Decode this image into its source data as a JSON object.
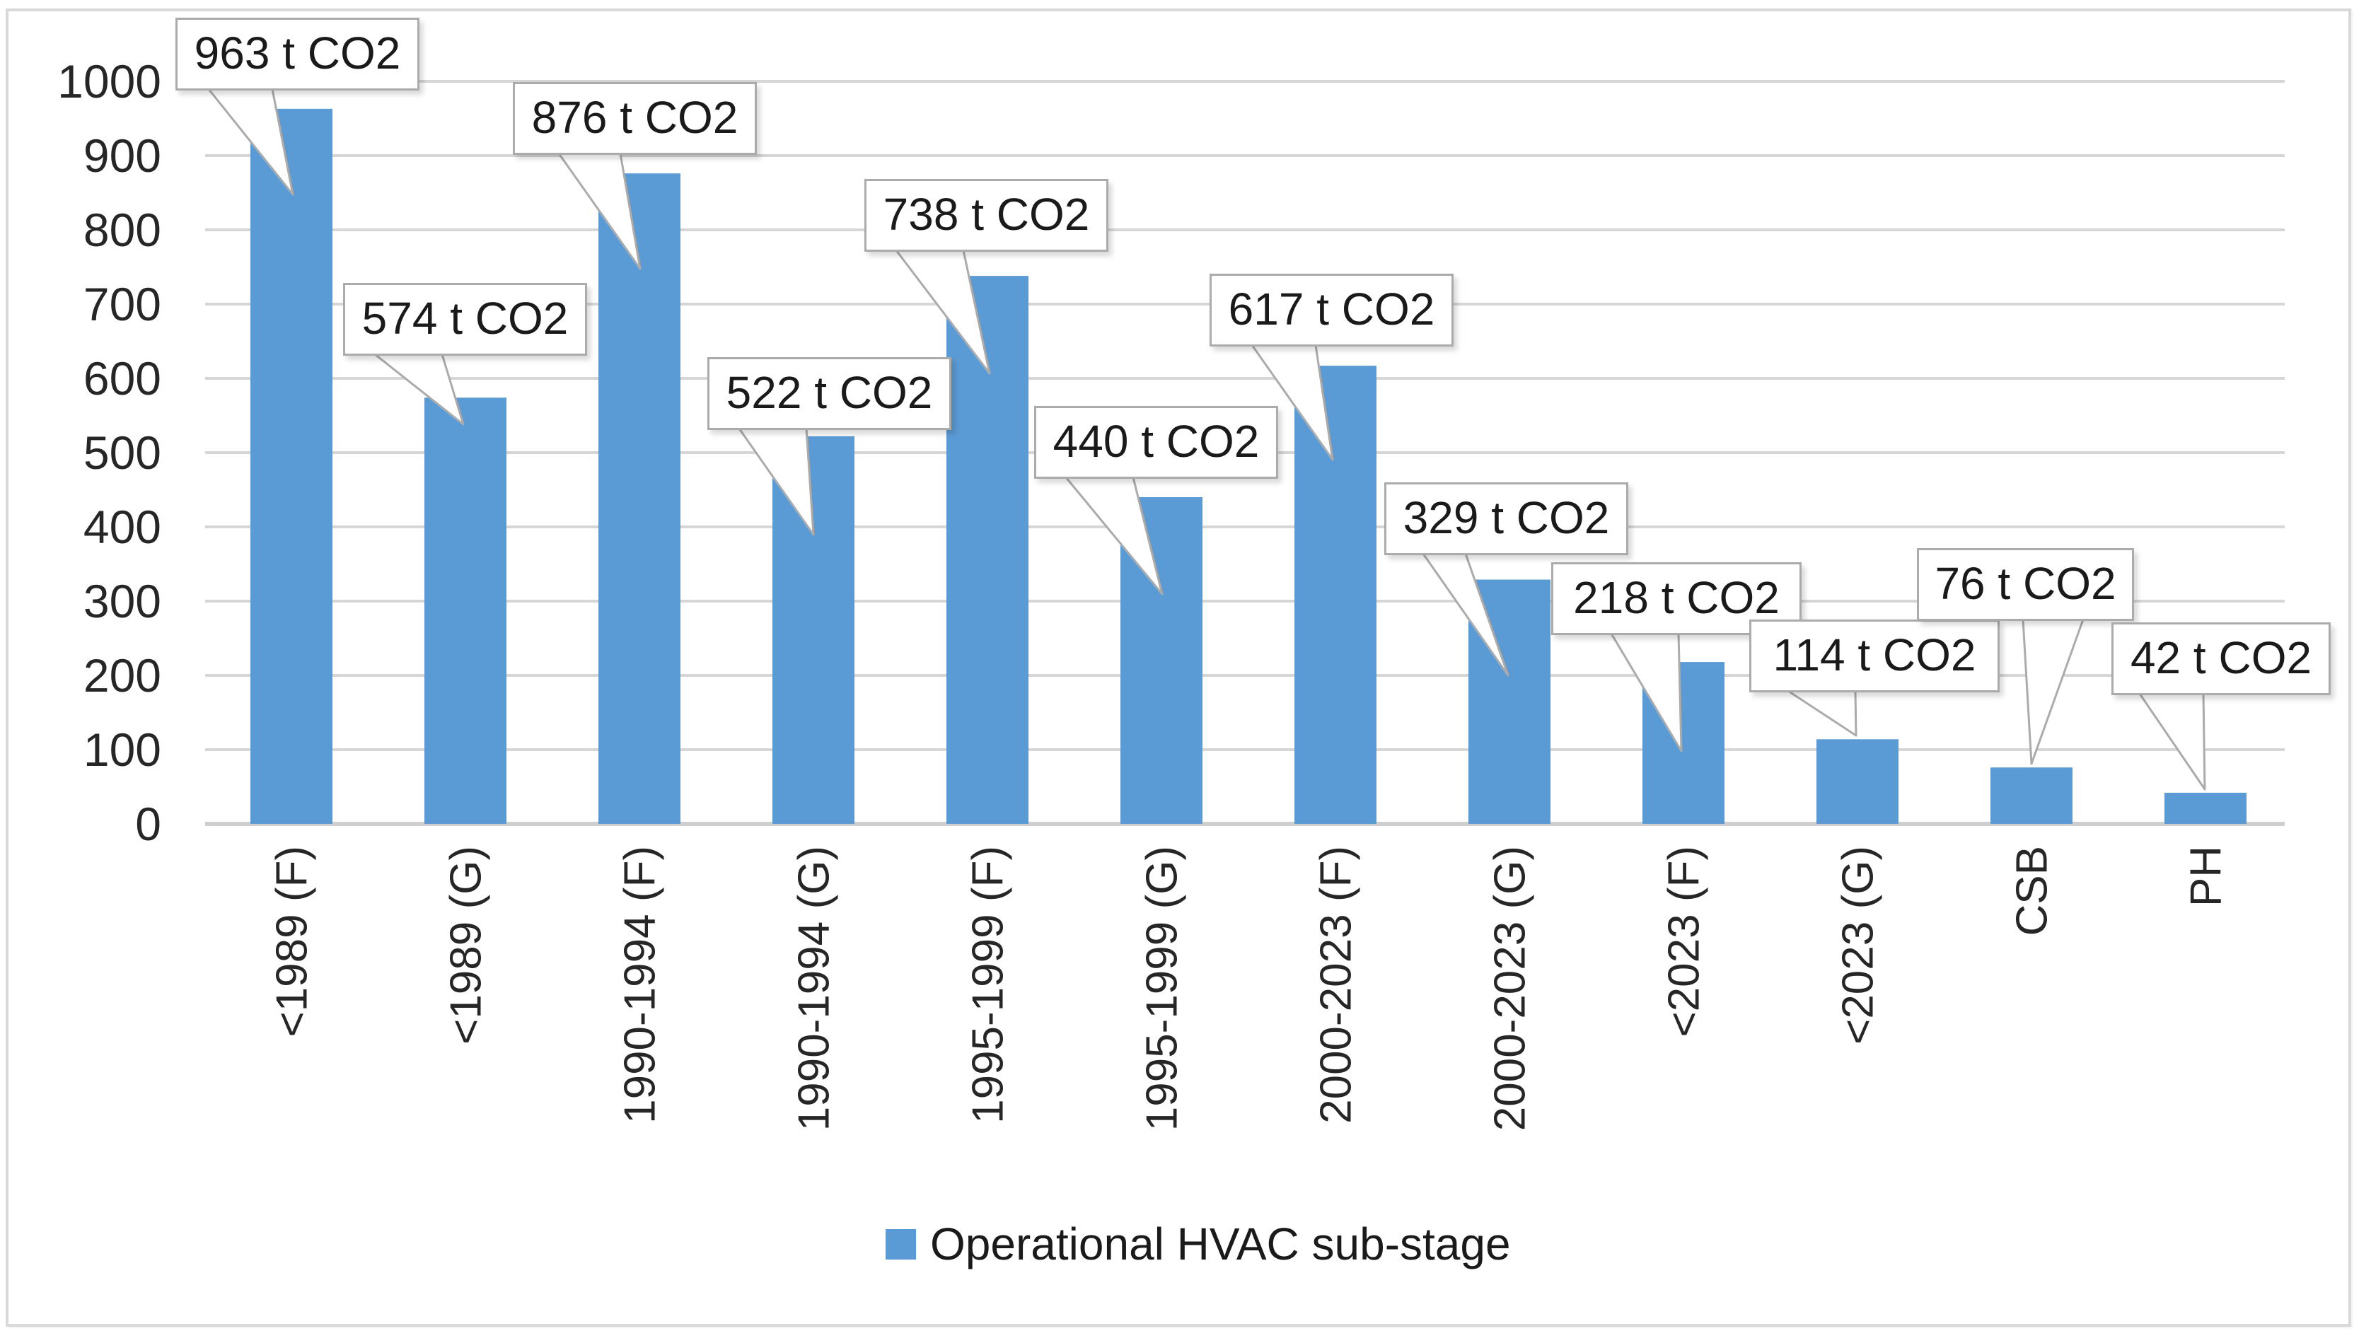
{
  "chart_data": {
    "type": "bar",
    "title": "",
    "categories": [
      "<1989 (F)",
      "<1989 (G)",
      "1990-1994 (F)",
      "1990-1994 (G)",
      "1995-1999 (F)",
      "1995-1999 (G)",
      "2000-2023 (F)",
      "2000-2023 (G)",
      "<2023 (F)",
      "<2023 (G)",
      "CSB",
      "PH"
    ],
    "values": [
      963,
      574,
      876,
      522,
      738,
      440,
      617,
      329,
      218,
      114,
      76,
      42
    ],
    "data_labels": [
      "963 t CO2",
      "574 t CO2",
      "876 t CO2",
      "522 t CO2",
      "738 t CO2",
      "440 t CO2",
      "617 t CO2",
      "329 t CO2",
      "218 t CO2",
      "114 t CO2",
      "76 t CO2",
      "42 t CO2"
    ],
    "unit": "t CO2",
    "series_name": "Operational HVAC sub-stage",
    "xlabel": "",
    "ylabel": "",
    "yticks": [
      0,
      100,
      200,
      300,
      400,
      500,
      600,
      700,
      800,
      900,
      1000
    ],
    "ylim": [
      0,
      1000
    ],
    "grid": true,
    "legend_position": "bottom",
    "colors": {
      "bar": "#5B9BD5",
      "gridline": "#D6D6D6",
      "axis_line": "#CFCFCF",
      "callout_border": "#ABABAB",
      "callout_fill": "#FFFFFF",
      "text": "#1A1A1A",
      "tick_text": "#262626",
      "frame_border": "#D9D9D9"
    }
  },
  "legend": {
    "label": "Operational HVAC sub-stage"
  }
}
